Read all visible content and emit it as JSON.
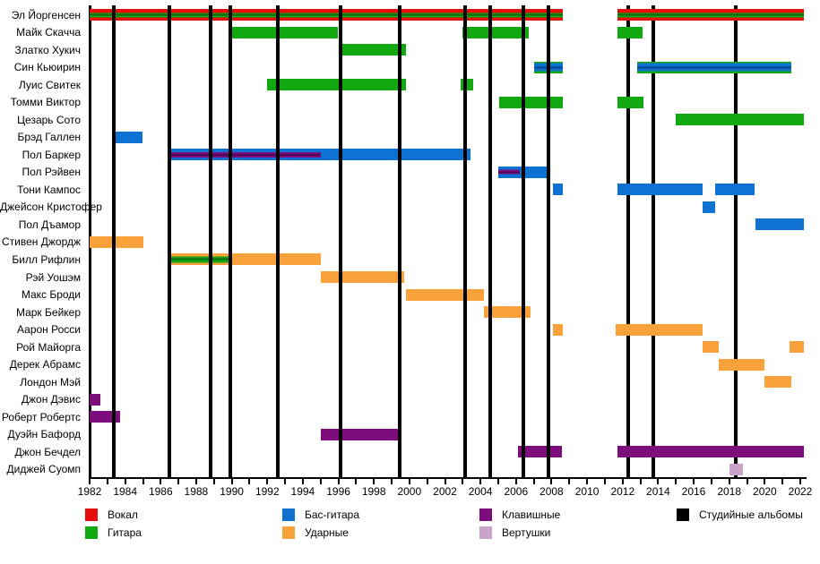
{
  "chart_data": {
    "type": "gantt",
    "title": "",
    "x_axis": {
      "start": 1982,
      "end": 2022,
      "tick_step_labeled": 2,
      "tick_step_minor": 1,
      "tick_labels": [
        "1982",
        "1984",
        "1986",
        "1988",
        "1990",
        "1992",
        "1994",
        "1996",
        "1998",
        "2000",
        "2002",
        "2004",
        "2006",
        "2008",
        "2010",
        "2012",
        "2014",
        "2016",
        "2018",
        "2020",
        "2022"
      ]
    },
    "colors": {
      "vocals": "#E60D0D",
      "guitar": "#12A812",
      "bass": "#0E72D2",
      "drums": "#F9A13B",
      "keyboards": "#7D0C7D",
      "turntables": "#C9A3C9",
      "albums": "#000000"
    },
    "members": [
      {
        "name": "Эл Йоргенсен",
        "bars": [
          {
            "from": 1982.0,
            "to": 2008.65,
            "role": "vocals",
            "stripe": "guitar",
            "stripe_h": 5
          },
          {
            "from": 2011.7,
            "to": 2022.2,
            "role": "vocals",
            "stripe": "guitar",
            "stripe_h": 5
          }
        ]
      },
      {
        "name": "Майк Скачча",
        "bars": [
          {
            "from": 1989.9,
            "to": 1996.0,
            "role": "guitar"
          },
          {
            "from": 2003.0,
            "to": 2006.7,
            "role": "guitar"
          },
          {
            "from": 2011.7,
            "to": 2013.1,
            "role": "guitar"
          }
        ]
      },
      {
        "name": "Златко Хукич",
        "bars": [
          {
            "from": 1996.0,
            "to": 1999.8,
            "role": "guitar"
          }
        ]
      },
      {
        "name": "Син Кьюирин",
        "bars": [
          {
            "from": 2007.0,
            "to": 2008.65,
            "role": "guitar",
            "stripe": "bass",
            "stripe_h": 9
          },
          {
            "from": 2012.8,
            "to": 2021.5,
            "role": "guitar",
            "stripe": "bass",
            "stripe_h": 9
          }
        ]
      },
      {
        "name": "Луис Свитек",
        "bars": [
          {
            "from": 1992.0,
            "to": 1999.8,
            "role": "guitar"
          },
          {
            "from": 2002.9,
            "to": 2003.6,
            "role": "guitar"
          }
        ]
      },
      {
        "name": "Томми Виктор",
        "bars": [
          {
            "from": 2005.05,
            "to": 2008.65,
            "role": "guitar"
          },
          {
            "from": 2011.7,
            "to": 2013.2,
            "role": "guitar"
          }
        ]
      },
      {
        "name": "Цезарь Сото",
        "bars": [
          {
            "from": 2015.0,
            "to": 2022.2,
            "role": "guitar"
          }
        ]
      },
      {
        "name": "Брэд Галлен",
        "bars": [
          {
            "from": 1983.4,
            "to": 1985.0,
            "role": "bass"
          }
        ]
      },
      {
        "name": "Пол Баркер",
        "bars": [
          {
            "from": 1986.6,
            "to": 1995.0,
            "role": "bass",
            "stripe": "keyboards",
            "stripe_h": 6
          },
          {
            "from": 1995.0,
            "to": 2003.45,
            "role": "bass"
          }
        ]
      },
      {
        "name": "Пол Рэйвен",
        "bars": [
          {
            "from": 2005.0,
            "to": 2006.2,
            "role": "bass",
            "stripe": "keyboards",
            "stripe_h": 5
          },
          {
            "from": 2006.2,
            "to": 2007.85,
            "role": "bass"
          }
        ]
      },
      {
        "name": "Тони Кампос",
        "bars": [
          {
            "from": 2008.1,
            "to": 2008.65,
            "role": "bass"
          },
          {
            "from": 2011.7,
            "to": 2016.5,
            "role": "bass"
          },
          {
            "from": 2017.2,
            "to": 2019.45,
            "role": "bass"
          }
        ]
      },
      {
        "name": "Джейсон Кристофер",
        "bars": [
          {
            "from": 2016.5,
            "to": 2017.2,
            "role": "bass"
          }
        ]
      },
      {
        "name": "Пол Дъамор",
        "bars": [
          {
            "from": 2019.5,
            "to": 2022.2,
            "role": "bass"
          }
        ]
      },
      {
        "name": "Стивен Джордж",
        "bars": [
          {
            "from": 1982.0,
            "to": 1985.0,
            "role": "drums"
          }
        ]
      },
      {
        "name": "Билл Рифлин",
        "bars": [
          {
            "from": 1986.6,
            "to": 1989.9,
            "role": "drums",
            "stripe": "guitar",
            "stripe_h": 7
          },
          {
            "from": 1989.9,
            "to": 1995.0,
            "role": "drums"
          }
        ]
      },
      {
        "name": "Рэй Уошэм",
        "bars": [
          {
            "from": 1995.0,
            "to": 1999.7,
            "role": "drums"
          }
        ]
      },
      {
        "name": "Макс Броди",
        "bars": [
          {
            "from": 1999.8,
            "to": 2004.2,
            "role": "drums"
          }
        ]
      },
      {
        "name": "Марк Бейкер",
        "bars": [
          {
            "from": 2004.2,
            "to": 2006.8,
            "role": "drums"
          }
        ]
      },
      {
        "name": "Аарон Росси",
        "bars": [
          {
            "from": 2008.1,
            "to": 2008.65,
            "role": "drums"
          },
          {
            "from": 2011.6,
            "to": 2016.5,
            "role": "drums"
          }
        ]
      },
      {
        "name": "Рой Майорга",
        "bars": [
          {
            "from": 2016.5,
            "to": 2017.4,
            "role": "drums"
          },
          {
            "from": 2021.4,
            "to": 2022.2,
            "role": "drums"
          }
        ]
      },
      {
        "name": "Дерек Абрамс",
        "bars": [
          {
            "from": 2017.4,
            "to": 2020.0,
            "role": "drums"
          }
        ]
      },
      {
        "name": "Лондон Мэй",
        "bars": [
          {
            "from": 2020.0,
            "to": 2021.5,
            "role": "drums"
          }
        ]
      },
      {
        "name": "Джон Дэвис",
        "bars": [
          {
            "from": 1982.0,
            "to": 1982.6,
            "role": "keyboards"
          }
        ]
      },
      {
        "name": "Роберт Робертс",
        "bars": [
          {
            "from": 1982.0,
            "to": 1983.7,
            "role": "keyboards"
          }
        ]
      },
      {
        "name": "Дуэйн Бафорд",
        "bars": [
          {
            "from": 1995.0,
            "to": 1999.4,
            "role": "keyboards"
          }
        ]
      },
      {
        "name": "Джон Бечдел",
        "bars": [
          {
            "from": 2006.1,
            "to": 2008.6,
            "role": "keyboards"
          },
          {
            "from": 2011.7,
            "to": 2022.2,
            "role": "keyboards"
          }
        ]
      },
      {
        "name": "Диджей Суомп",
        "bars": [
          {
            "from": 2018.0,
            "to": 2018.75,
            "role": "turntables"
          }
        ]
      }
    ],
    "albums": [
      {
        "year": 1983.35,
        "layer": "front"
      },
      {
        "year": 1986.5,
        "layer": "front"
      },
      {
        "year": 1988.8,
        "layer": "front"
      },
      {
        "year": 1989.9,
        "layer": "front"
      },
      {
        "year": 1992.6,
        "layer": "front"
      },
      {
        "year": 1996.1,
        "layer": "front"
      },
      {
        "year": 1999.45,
        "layer": "front"
      },
      {
        "year": 2003.15,
        "layer": "front"
      },
      {
        "year": 2004.55,
        "layer": "front"
      },
      {
        "year": 2006.4,
        "layer": "front"
      },
      {
        "year": 2007.8,
        "layer": "front"
      },
      {
        "year": 2012.3,
        "layer": "back"
      },
      {
        "year": 2013.75,
        "layer": "back"
      },
      {
        "year": 2018.35,
        "layer": "back"
      }
    ],
    "legend": {
      "columns": [
        [
          {
            "label": "Вокал",
            "role": "vocals"
          },
          {
            "label": "Гитара",
            "role": "guitar"
          }
        ],
        [
          {
            "label": "Бас-гитара",
            "role": "bass"
          },
          {
            "label": "Ударные",
            "role": "drums"
          }
        ],
        [
          {
            "label": "Клавишные",
            "role": "keyboards"
          },
          {
            "label": "Вертушки",
            "role": "turntables"
          }
        ],
        [
          {
            "label": "Студийные альбомы",
            "role": "albums"
          }
        ]
      ]
    }
  }
}
